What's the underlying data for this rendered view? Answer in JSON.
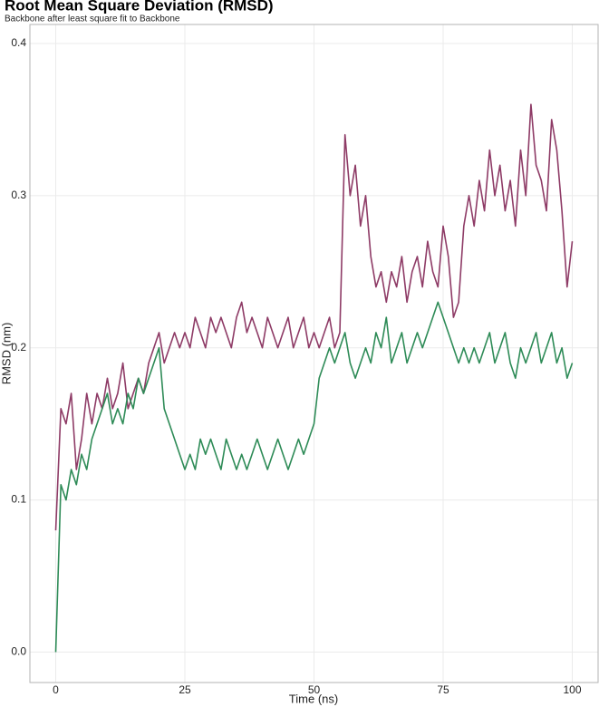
{
  "chart_data": {
    "type": "line",
    "title": "Root Mean Square Deviation (RMSD)",
    "subtitle": "Backbone after least square fit to Backbone",
    "x_label": "Time (ns)",
    "y_label": "RMSD (nm)",
    "x": [
      0,
      1,
      2,
      3,
      4,
      5,
      6,
      7,
      8,
      9,
      10,
      11,
      12,
      13,
      14,
      15,
      16,
      17,
      18,
      19,
      20,
      21,
      22,
      23,
      24,
      25,
      26,
      27,
      28,
      29,
      30,
      31,
      32,
      33,
      34,
      35,
      36,
      37,
      38,
      39,
      40,
      41,
      42,
      43,
      44,
      45,
      46,
      47,
      48,
      49,
      50,
      51,
      52,
      53,
      54,
      55,
      56,
      57,
      58,
      59,
      60,
      61,
      62,
      63,
      64,
      65,
      66,
      67,
      68,
      69,
      70,
      71,
      72,
      73,
      74,
      75,
      76,
      77,
      78,
      79,
      80,
      81,
      82,
      83,
      84,
      85,
      86,
      87,
      88,
      89,
      90,
      91,
      92,
      93,
      94,
      95,
      96,
      97,
      98,
      99,
      100
    ],
    "series": [
      {
        "color": "#8e3b66",
        "values": [
          0.08,
          0.16,
          0.15,
          0.17,
          0.12,
          0.14,
          0.17,
          0.15,
          0.17,
          0.16,
          0.18,
          0.16,
          0.17,
          0.19,
          0.16,
          0.17,
          0.18,
          0.17,
          0.19,
          0.2,
          0.21,
          0.19,
          0.2,
          0.21,
          0.2,
          0.21,
          0.2,
          0.22,
          0.21,
          0.2,
          0.22,
          0.21,
          0.22,
          0.21,
          0.2,
          0.22,
          0.23,
          0.21,
          0.22,
          0.21,
          0.2,
          0.22,
          0.21,
          0.2,
          0.21,
          0.22,
          0.2,
          0.21,
          0.22,
          0.2,
          0.21,
          0.2,
          0.21,
          0.22,
          0.2,
          0.21,
          0.34,
          0.3,
          0.32,
          0.28,
          0.3,
          0.26,
          0.24,
          0.25,
          0.23,
          0.25,
          0.24,
          0.26,
          0.23,
          0.25,
          0.26,
          0.24,
          0.27,
          0.25,
          0.24,
          0.28,
          0.26,
          0.22,
          0.23,
          0.28,
          0.3,
          0.28,
          0.31,
          0.29,
          0.33,
          0.3,
          0.32,
          0.29,
          0.31,
          0.28,
          0.33,
          0.3,
          0.36,
          0.32,
          0.31,
          0.29,
          0.35,
          0.33,
          0.29,
          0.24,
          0.27
        ]
      },
      {
        "color": "#2e8b57",
        "values": [
          0.0,
          0.11,
          0.1,
          0.12,
          0.11,
          0.13,
          0.12,
          0.14,
          0.15,
          0.16,
          0.17,
          0.15,
          0.16,
          0.15,
          0.17,
          0.16,
          0.18,
          0.17,
          0.18,
          0.19,
          0.2,
          0.16,
          0.15,
          0.14,
          0.13,
          0.12,
          0.13,
          0.12,
          0.14,
          0.13,
          0.14,
          0.13,
          0.12,
          0.14,
          0.13,
          0.12,
          0.13,
          0.12,
          0.13,
          0.14,
          0.13,
          0.12,
          0.13,
          0.14,
          0.13,
          0.12,
          0.13,
          0.14,
          0.13,
          0.14,
          0.15,
          0.18,
          0.19,
          0.2,
          0.19,
          0.2,
          0.21,
          0.19,
          0.18,
          0.19,
          0.2,
          0.19,
          0.21,
          0.2,
          0.22,
          0.19,
          0.2,
          0.21,
          0.19,
          0.2,
          0.21,
          0.2,
          0.21,
          0.22,
          0.23,
          0.22,
          0.21,
          0.2,
          0.19,
          0.2,
          0.19,
          0.2,
          0.19,
          0.2,
          0.21,
          0.19,
          0.2,
          0.21,
          0.19,
          0.18,
          0.2,
          0.19,
          0.2,
          0.21,
          0.19,
          0.2,
          0.21,
          0.19,
          0.2,
          0.18,
          0.19
        ]
      }
    ],
    "xlim": [
      -5,
      105
    ],
    "xticks": [
      0,
      25,
      50,
      75,
      100
    ],
    "ylim": [
      -0.02,
      0.4125
    ],
    "yticks": [
      {
        "value": 0,
        "label": "0.0"
      },
      0.1,
      0.2,
      0.3,
      0.4
    ],
    "grid": true
  }
}
